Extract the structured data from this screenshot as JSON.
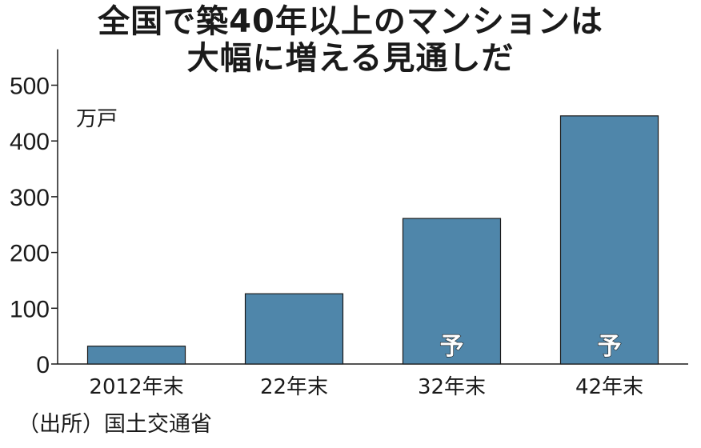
{
  "title_line1": "全国で築40年以上のマンションは",
  "title_line2": "大幅に増える見通しだ",
  "source": "（出所）国土交通省",
  "colors": {
    "bar": "#4f86aa",
    "bar_edge": "#1a1a1a",
    "axis": "#1a1a1a"
  },
  "chart_data": {
    "type": "bar",
    "title": "全国で築40年以上のマンションは大幅に増える見通しだ",
    "unit_label": "万戸",
    "categories": [
      "2012年末",
      "22年末",
      "32年末",
      "42年末"
    ],
    "values": [
      32,
      126,
      261,
      445
    ],
    "ylim": [
      0,
      550
    ],
    "yticks": [
      0,
      100,
      200,
      300,
      400,
      500
    ],
    "bar_notes": [
      "",
      "",
      "予",
      "予"
    ],
    "grid": false,
    "legend": "none"
  }
}
